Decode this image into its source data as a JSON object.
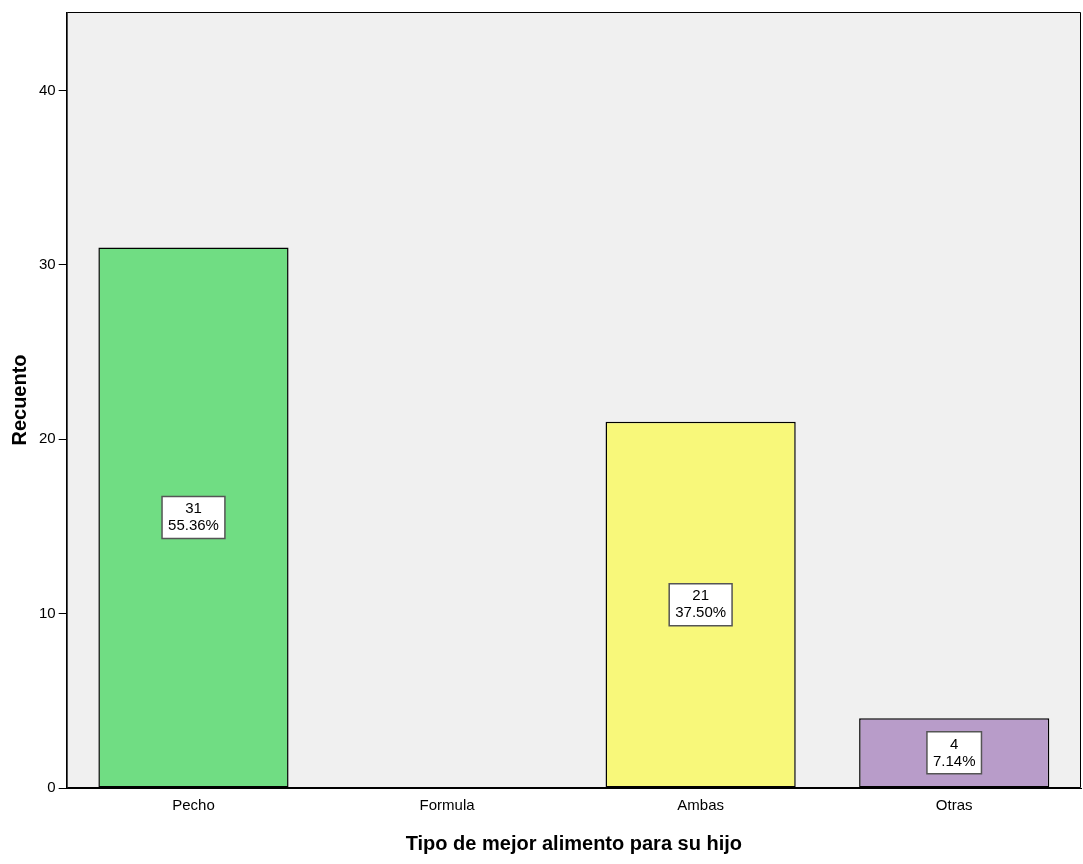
{
  "chart_data": {
    "type": "bar",
    "xlabel": "Tipo de mejor alimento para su hijo",
    "ylabel": "Recuento",
    "categories": [
      "Pecho",
      "Formula",
      "Ambas",
      "Otras"
    ],
    "values": [
      31,
      0,
      21,
      4
    ],
    "colors": [
      "#70dd83",
      "#70dd83",
      "#f8f87a",
      "#b89cc9"
    ],
    "value_labels": [
      "31\n55.36%",
      null,
      "21\n37.50%",
      "4\n7.14%"
    ],
    "ylim": [
      0,
      44.5
    ],
    "yticks": [
      0,
      10,
      20,
      30,
      40
    ],
    "grid": false,
    "legend": false
  }
}
